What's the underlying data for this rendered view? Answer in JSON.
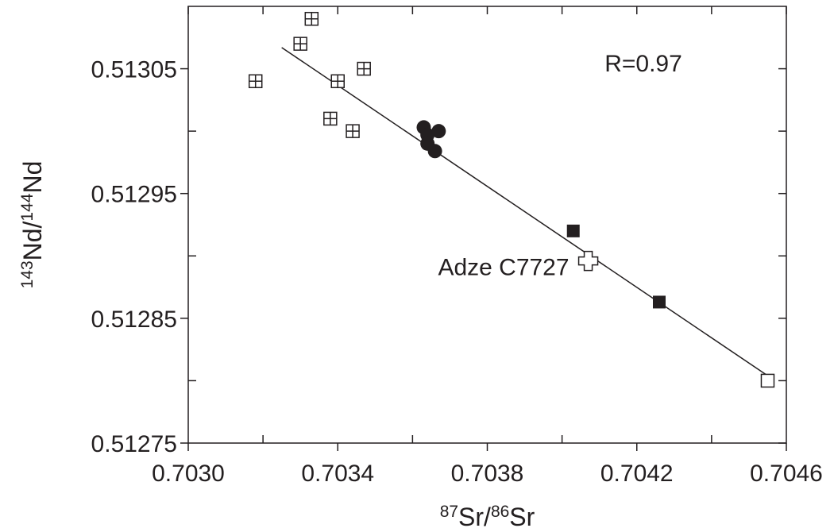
{
  "chart_data": {
    "type": "scatter",
    "xlabel_parts": [
      {
        "text": "87",
        "sup": true
      },
      {
        "text": "Sr/",
        "sup": false
      },
      {
        "text": "86",
        "sup": true
      },
      {
        "text": "Sr",
        "sup": false
      }
    ],
    "ylabel_parts": [
      {
        "text": "143",
        "sup": true
      },
      {
        "text": "Nd/",
        "sup": false
      },
      {
        "text": "144",
        "sup": true
      },
      {
        "text": "Nd",
        "sup": false
      }
    ],
    "xlim": [
      0.703,
      0.7046
    ],
    "ylim": [
      0.51275,
      0.5131
    ],
    "xticks": [
      {
        "value": 0.703,
        "label": "0.7030"
      },
      0.7034,
      0.7038,
      0.7042,
      0.7046
    ],
    "yticks": [
      0.51275,
      0.51285,
      0.51295,
      0.51305
    ],
    "xminor": [
      0.7032,
      0.7036,
      0.704,
      0.7044
    ],
    "yminor": [
      0.5128,
      0.5129,
      0.513
    ],
    "annotations": [
      "R=0.97"
    ],
    "fit_line": {
      "x": [
        0.70325,
        0.70455
      ],
      "y": [
        0.513067,
        0.512804
      ],
      "color": "#231f20"
    },
    "series": [
      {
        "marker": "crossed-square",
        "color": "#231f20",
        "x": [
          0.70333,
          0.7033,
          0.70318,
          0.7034,
          0.70347,
          0.70338,
          0.70344
        ],
        "y": [
          0.51309,
          0.51307,
          0.51304,
          0.51304,
          0.51305,
          0.51301,
          0.513
        ]
      },
      {
        "marker": "circle",
        "color": "#231f20",
        "x": [
          0.70363,
          0.70364,
          0.70367,
          0.70364,
          0.70366
        ],
        "y": [
          0.513003,
          0.512997,
          0.513,
          0.51299,
          0.512984
        ]
      },
      {
        "marker": "filled-square",
        "color": "#231f20",
        "x": [
          0.70403,
          0.70426
        ],
        "y": [
          0.51292,
          0.512863
        ]
      },
      {
        "marker": "open-square",
        "color": "#231f20",
        "x": [
          0.70455
        ],
        "y": [
          0.5128
        ]
      },
      {
        "marker": "open-cross",
        "color": "#231f20",
        "label": "Adze C7727",
        "x": [
          0.70407
        ],
        "y": [
          0.512896
        ]
      }
    ]
  }
}
